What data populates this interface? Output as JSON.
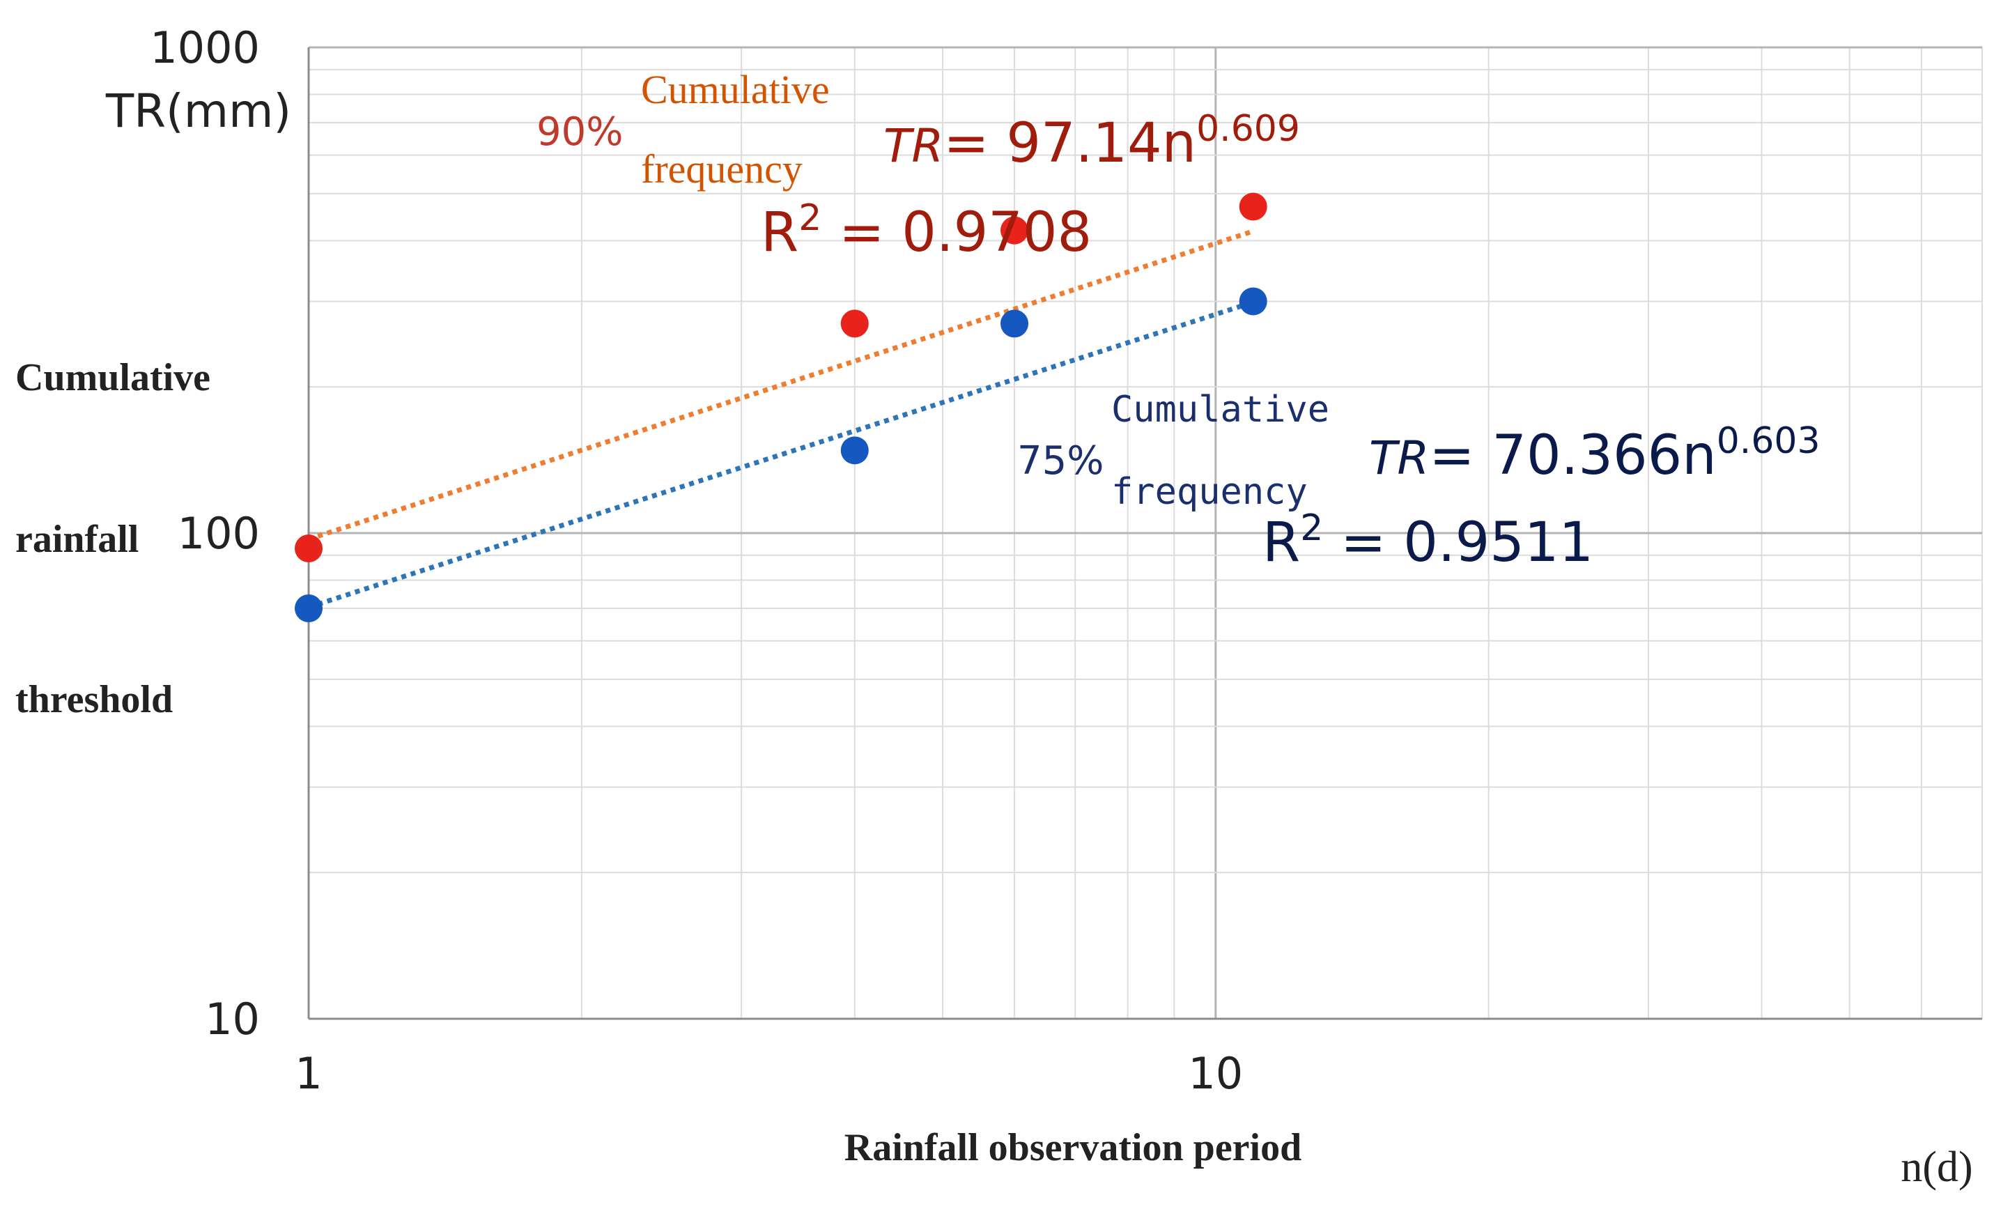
{
  "chart_data": {
    "type": "scatter",
    "title": "",
    "xlabel": "Rainfall observation period",
    "x_unit": "n(d)",
    "ylabel": [
      "Cumulative",
      "rainfall",
      "threshold"
    ],
    "y_unit": "TR(mm)",
    "x_scale": "log",
    "y_scale": "log",
    "xlim": [
      1,
      70
    ],
    "ylim": [
      10,
      1000
    ],
    "x_ticks": [
      "1",
      "10"
    ],
    "x_tick_values": [
      1,
      10
    ],
    "y_ticks": [
      "10",
      "100",
      "1000"
    ],
    "y_tick_values": [
      10,
      100,
      1000
    ],
    "grid": true,
    "series": [
      {
        "name": "90% Cumulative frequency",
        "label_pct": "90%",
        "label_words": [
          "Cumulative",
          "frequency"
        ],
        "color": "#e8231c",
        "trend_color": "#ed7d31",
        "x": [
          1,
          4,
          6,
          11
        ],
        "y": [
          93,
          270,
          420,
          470
        ],
        "trendline": {
          "a": 97.14,
          "b": 0.609,
          "x_range": [
            1,
            11
          ]
        },
        "eq_prefix": "TR",
        "eq_main": "= 97.14n",
        "eq_exp": "0.609",
        "r2_prefix": "R",
        "r2_exp": "2",
        "r2_value": " = 0.9708"
      },
      {
        "name": "75% Cumulative frequency",
        "label_pct": "75%",
        "label_words": [
          "Cumulative",
          "frequency"
        ],
        "color": "#1558c0",
        "trend_color": "#2e75b6",
        "x": [
          1,
          4,
          6,
          11
        ],
        "y": [
          70,
          148,
          270,
          300
        ],
        "trendline": {
          "a": 70.366,
          "b": 0.603,
          "x_range": [
            1,
            11
          ]
        },
        "eq_prefix": "TR",
        "eq_main": "= 70.366n",
        "eq_exp": "0.603",
        "r2_prefix": "R",
        "r2_exp": "2",
        "r2_value": " = 0.9511"
      }
    ]
  }
}
